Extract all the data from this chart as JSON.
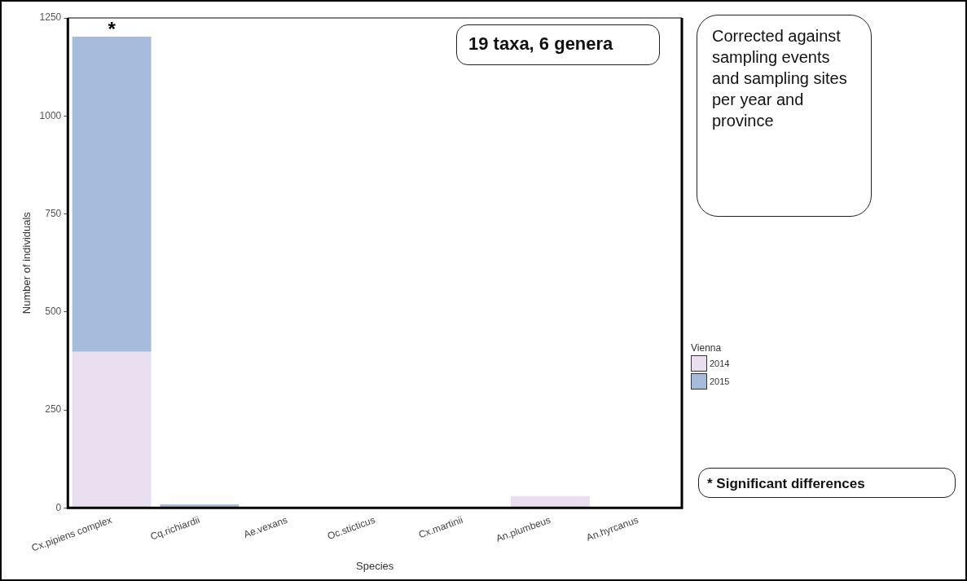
{
  "chart_data": {
    "type": "bar",
    "stacked": true,
    "xlabel": "Species",
    "ylabel": "Number of individuals",
    "legend_title": "Vienna",
    "legend": "right",
    "categories": [
      "Cx.pipiens complex",
      "Cq.richiardii",
      "Ae.vexans",
      "Oc.sticticus",
      "Cx.martinii",
      "An.plumbeus",
      "An.hyrcanus"
    ],
    "series": [
      {
        "name": "2014",
        "color": "#e9dff0",
        "values": [
          398,
          0,
          0,
          0,
          0,
          30,
          0
        ]
      },
      {
        "name": "2015",
        "color": "#a7bcdc",
        "values": [
          804,
          9,
          2,
          0,
          0,
          0,
          0
        ]
      }
    ],
    "ylim": [
      0,
      1250
    ],
    "yticks": [
      0,
      250,
      500,
      750,
      1000,
      1250
    ],
    "grid": false,
    "annotations": [
      "19 taxa, 6 genera",
      "Corrected against sampling events and sampling sites per year and province",
      "* Significant differences",
      {
        "text": "*",
        "x": "Cx.pipiens complex",
        "y": 1202
      }
    ]
  }
}
